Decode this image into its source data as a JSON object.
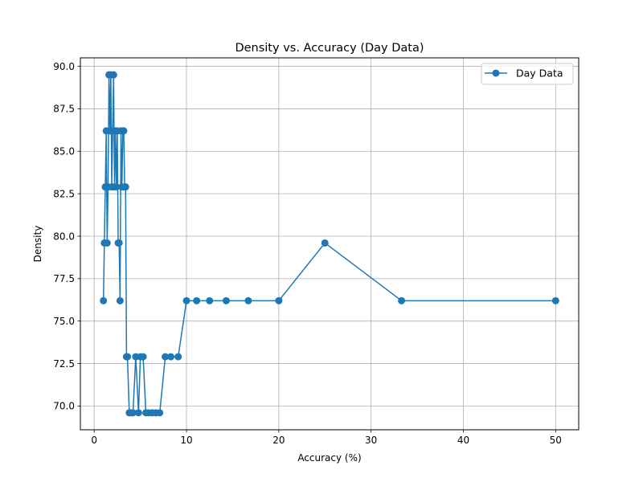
{
  "chart_data": {
    "type": "line",
    "title": "Density vs. Accuracy (Day Data)",
    "xlabel": "Accuracy (%)",
    "ylabel": "Density",
    "xlim": [
      -1.5,
      52.5
    ],
    "ylim": [
      68.6,
      90.5
    ],
    "xticks": [
      0,
      10,
      20,
      30,
      40,
      50
    ],
    "yticks": [
      70.0,
      72.5,
      75.0,
      77.5,
      80.0,
      82.5,
      85.0,
      87.5,
      90.0
    ],
    "xtick_labels": [
      "0",
      "10",
      "20",
      "30",
      "40",
      "50"
    ],
    "ytick_labels": [
      "70.0",
      "72.5",
      "75.0",
      "77.5",
      "80.0",
      "82.5",
      "85.0",
      "87.5",
      "90.0"
    ],
    "grid": true,
    "legend": "top-right",
    "series": [
      {
        "name": "Day Data",
        "color": "#1f77b4",
        "marker": "circle",
        "x": [
          1.0,
          1.1,
          1.2,
          1.3,
          1.4,
          1.5,
          1.6,
          1.7,
          1.8,
          1.9,
          2.0,
          2.1,
          2.2,
          2.3,
          2.4,
          2.5,
          2.6,
          2.7,
          2.8,
          2.9,
          3.0,
          3.1,
          3.2,
          3.3,
          3.4,
          3.5,
          3.6,
          3.8,
          4.0,
          4.2,
          4.5,
          4.8,
          5.0,
          5.3,
          5.6,
          5.9,
          6.3,
          6.7,
          7.1,
          7.7,
          8.3,
          9.1,
          10.0,
          11.1,
          12.5,
          14.3,
          16.7,
          20.0,
          25.0,
          33.3,
          50.0
        ],
        "y": [
          76.2,
          79.6,
          82.9,
          86.2,
          79.6,
          82.9,
          89.5,
          86.2,
          89.5,
          82.9,
          86.2,
          89.5,
          82.9,
          86.2,
          82.9,
          86.2,
          79.6,
          79.6,
          76.2,
          86.2,
          82.9,
          86.2,
          86.2,
          82.9,
          82.9,
          72.9,
          72.9,
          69.6,
          69.6,
          69.6,
          72.9,
          69.6,
          72.9,
          72.9,
          69.6,
          69.6,
          69.6,
          69.6,
          69.6,
          72.9,
          72.9,
          72.9,
          76.2,
          76.2,
          76.2,
          76.2,
          76.2,
          76.2,
          79.6,
          76.2,
          76.2
        ]
      }
    ]
  }
}
